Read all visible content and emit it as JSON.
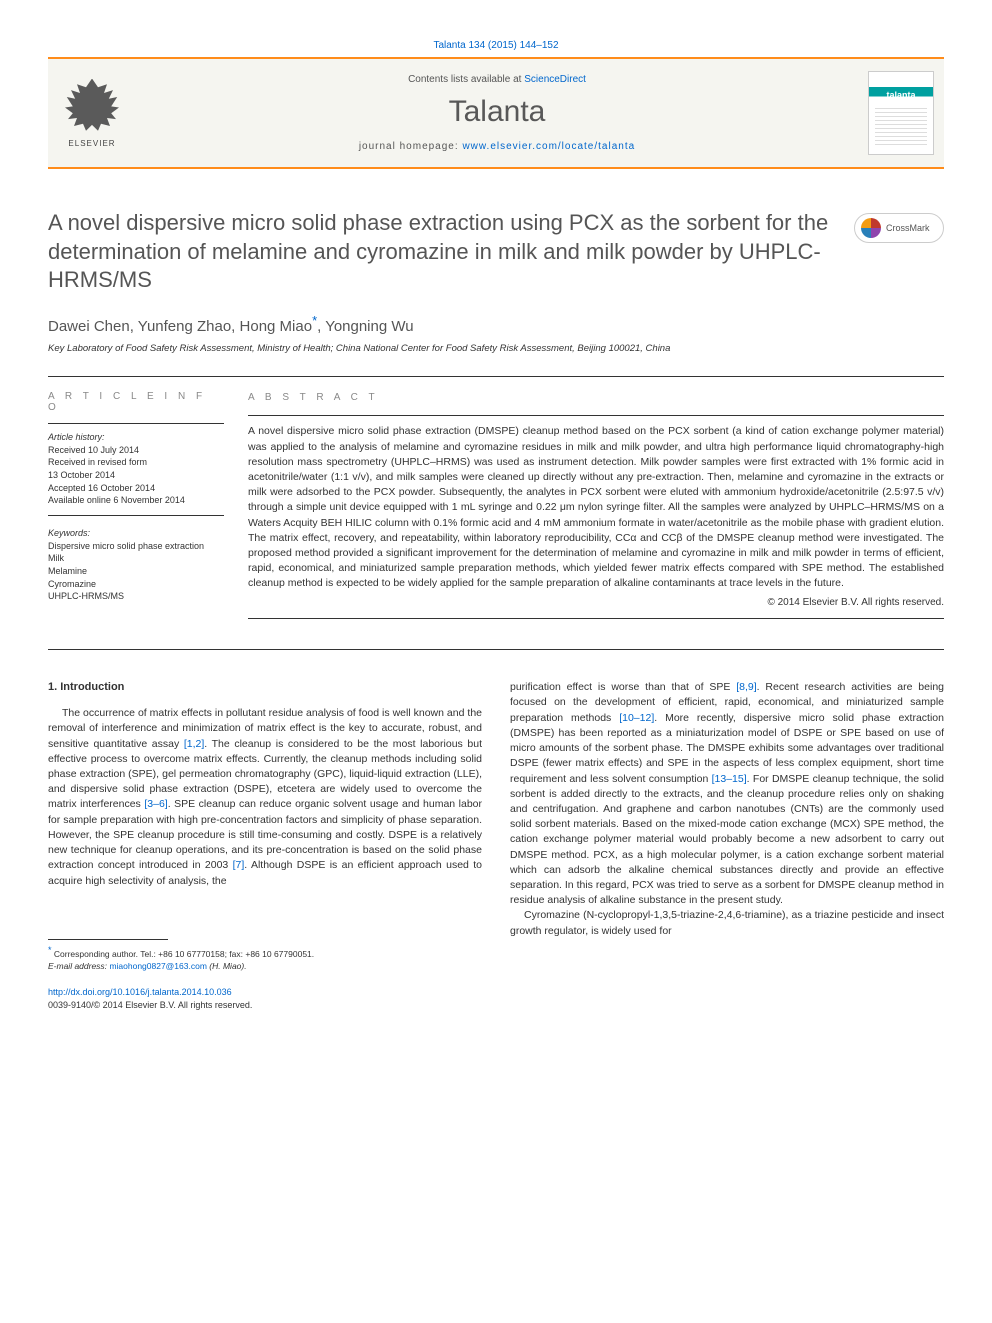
{
  "top_citation": "Talanta 134 (2015) 144–152",
  "header": {
    "contents_prefix": "Contents lists available at ",
    "contents_link": "ScienceDirect",
    "journal_name": "Talanta",
    "homepage_prefix": "journal homepage: ",
    "homepage_url": "www.elsevier.com/locate/talanta",
    "publisher_name": "ELSEVIER"
  },
  "crossmark_label": "CrossMark",
  "title": "A novel dispersive micro solid phase extraction using PCX as the sorbent for the determination of melamine and cyromazine in milk and milk powder by UHPLC-HRMS/MS",
  "authors": "Dawei Chen, Yunfeng Zhao, Hong Miao",
  "authors_suffix": ", Yongning Wu",
  "corr_symbol": "*",
  "affiliation": "Key Laboratory of Food Safety Risk Assessment, Ministry of Health; China National Center for Food Safety Risk Assessment, Beijing 100021, China",
  "article_info_label": "A R T I C L E   I N F O",
  "abstract_label": "A B S T R A C T",
  "history": {
    "label": "Article history:",
    "received": "Received 10 July 2014",
    "revised_1": "Received in revised form",
    "revised_2": "13 October 2014",
    "accepted": "Accepted 16 October 2014",
    "online": "Available online 6 November 2014"
  },
  "keywords": {
    "label": "Keywords:",
    "items": [
      "Dispersive micro solid phase extraction",
      "Milk",
      "Melamine",
      "Cyromazine",
      "UHPLC-HRMS/MS"
    ]
  },
  "abstract_text": "A novel dispersive micro solid phase extraction (DMSPE) cleanup method based on the PCX sorbent (a kind of cation exchange polymer material) was applied to the analysis of melamine and cyromazine residues in milk and milk powder, and ultra high performance liquid chromatography-high resolution mass spectrometry (UHPLC–HRMS) was used as instrument detection. Milk powder samples were first extracted with 1% formic acid in acetonitrile/water (1:1 v/v), and milk samples were cleaned up directly without any pre-extraction. Then, melamine and cyromazine in the extracts or milk were adsorbed to the PCX powder. Subsequently, the analytes in PCX sorbent were eluted with ammonium hydroxide/acetonitrile (2.5:97.5 v/v) through a simple unit device equipped with 1 mL syringe and 0.22 μm nylon syringe filter. All the samples were analyzed by UHPLC–HRMS/MS on a Waters Acquity BEH HILIC column with 0.1% formic acid and 4 mM ammonium formate in water/acetonitrile as the mobile phase with gradient elution. The matrix effect, recovery, and repeatability, within laboratory reproducibility, CCα and CCβ of the DMSPE cleanup method were investigated. The proposed method provided a significant improvement for the determination of melamine and cyromazine in milk and milk powder in terms of efficient, rapid, economical, and miniaturized sample preparation methods, which yielded fewer matrix effects compared with SPE method. The established cleanup method is expected to be widely applied for the sample preparation of alkaline contaminants at trace levels in the future.",
  "copyright": "© 2014 Elsevier B.V. All rights reserved.",
  "body": {
    "heading": "1.  Introduction",
    "col1_p1_a": "The occurrence of matrix effects in pollutant residue analysis of food is well known and the removal of interference and minimization of matrix effect is the key to accurate, robust, and sensitive quantitative assay ",
    "col1_ref1": "[1,2]",
    "col1_p1_b": ". The cleanup is considered to be the most laborious but effective process to overcome matrix effects. Currently, the cleanup methods including solid phase extraction (SPE), gel permeation chromatography (GPC), liquid-liquid extraction (LLE), and dispersive solid phase extraction (DSPE), etcetera are widely used to overcome the matrix interferences ",
    "col1_ref2": "[3–6]",
    "col1_p1_c": ". SPE cleanup can reduce organic solvent usage and human labor for sample preparation with high pre-concentration factors and simplicity of phase separation. However, the SPE cleanup procedure is still time-consuming and costly. DSPE is a relatively new technique for cleanup operations, and its pre-concentration is based on the solid phase extraction concept introduced in 2003 ",
    "col1_ref3": "[7]",
    "col1_p1_d": ". Although DSPE is an efficient approach used to acquire high selectivity of analysis, the",
    "col2_p1_a": "purification effect is worse than that of SPE ",
    "col2_ref1": "[8,9]",
    "col2_p1_b": ". Recent research activities are being focused on the development of efficient, rapid, economical, and miniaturized sample preparation methods ",
    "col2_ref2": "[10–12]",
    "col2_p1_c": ". More recently, dispersive micro solid phase extraction (DMSPE) has been reported as a miniaturization model of DSPE or SPE based on use of micro amounts of the sorbent phase. The DMSPE exhibits some advantages over traditional DSPE (fewer matrix effects) and SPE in the aspects of less complex equipment, short time requirement and less solvent consumption ",
    "col2_ref3": "[13–15]",
    "col2_p1_d": ". For DMSPE cleanup technique, the solid sorbent is added directly to the extracts, and the cleanup procedure relies only on shaking and centrifugation. And graphene and carbon nanotubes (CNTs) are the commonly used solid sorbent materials. Based on the mixed-mode cation exchange (MCX) SPE method, the cation exchange polymer material would probably become a new adsorbent to carry out DMSPE method. PCX, as a high molecular polymer, is a cation exchange sorbent material which can adsorb the alkaline chemical substances directly and provide an effective separation. In this regard, PCX was tried to serve as a sorbent for DMSPE cleanup method in residue analysis of alkaline substance in the present study.",
    "col2_p2": "Cyromazine (N-cyclopropyl-1,3,5-triazine-2,4,6-triamine), as a triazine pesticide and insect growth regulator, is widely used for"
  },
  "footer": {
    "corr_text": "Corresponding author. Tel.: +86 10 67770158; fax: +86 10 67790051.",
    "email_label": "E-mail address:",
    "email": "miaohong0827@163.com",
    "email_suffix": " (H. Miao).",
    "doi": "http://dx.doi.org/10.1016/j.talanta.2014.10.036",
    "issn": "0039-9140/© 2014 Elsevier B.V. All rights reserved."
  }
}
